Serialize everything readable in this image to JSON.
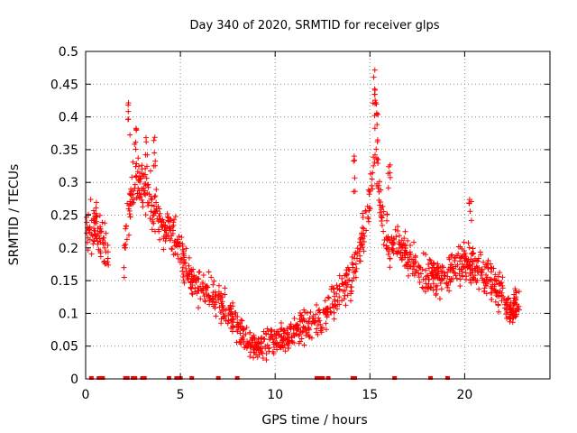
{
  "chart_data": {
    "type": "scatter",
    "title": "Day 340 of 2020, SRMTID for receiver glps",
    "xlabel": "GPS time / hours",
    "ylabel": "SRMTID / TECUs",
    "xlim": [
      0,
      24.5
    ],
    "ylim": [
      0,
      0.5
    ],
    "x_ticks": [
      0,
      5,
      10,
      15,
      20
    ],
    "y_ticks": [
      0,
      0.05,
      0.1,
      0.15,
      0.2,
      0.25,
      0.3,
      0.35,
      0.4,
      0.45,
      0.5
    ],
    "x_tick_labels": [
      "0",
      "5",
      "10",
      "15",
      "20"
    ],
    "y_tick_labels": [
      "0",
      "0.05",
      "0.1",
      "0.15",
      "0.2",
      "0.25",
      "0.3",
      "0.35",
      "0.4",
      "0.45",
      "0.5"
    ],
    "grid": true,
    "marker": "+",
    "color": "#ff0000",
    "series": [
      {
        "name": "SRMTID",
        "trend": [
          [
            0.0,
            0.22
          ],
          [
            0.5,
            0.24
          ],
          [
            1.0,
            0.2
          ],
          [
            2.0,
            0.18
          ],
          [
            2.5,
            0.3
          ],
          [
            3.0,
            0.3
          ],
          [
            3.5,
            0.26
          ],
          [
            4.0,
            0.24
          ],
          [
            4.5,
            0.23
          ],
          [
            5.0,
            0.19
          ],
          [
            5.5,
            0.16
          ],
          [
            6.0,
            0.14
          ],
          [
            6.5,
            0.13
          ],
          [
            7.0,
            0.12
          ],
          [
            7.5,
            0.1
          ],
          [
            8.0,
            0.08
          ],
          [
            8.5,
            0.06
          ],
          [
            9.0,
            0.05
          ],
          [
            9.5,
            0.05
          ],
          [
            10.0,
            0.06
          ],
          [
            10.5,
            0.065
          ],
          [
            11.0,
            0.07
          ],
          [
            11.5,
            0.08
          ],
          [
            12.0,
            0.085
          ],
          [
            12.5,
            0.09
          ],
          [
            13.0,
            0.11
          ],
          [
            13.5,
            0.14
          ],
          [
            14.0,
            0.15
          ],
          [
            14.5,
            0.2
          ],
          [
            15.0,
            0.27
          ],
          [
            15.3,
            0.35
          ],
          [
            15.6,
            0.25
          ],
          [
            16.0,
            0.2
          ],
          [
            16.5,
            0.2
          ],
          [
            17.0,
            0.19
          ],
          [
            17.5,
            0.17
          ],
          [
            18.0,
            0.16
          ],
          [
            18.5,
            0.16
          ],
          [
            19.0,
            0.16
          ],
          [
            19.5,
            0.17
          ],
          [
            20.0,
            0.18
          ],
          [
            20.5,
            0.17
          ],
          [
            21.0,
            0.16
          ],
          [
            21.5,
            0.15
          ],
          [
            22.0,
            0.13
          ],
          [
            22.5,
            0.1
          ],
          [
            22.9,
            0.12
          ]
        ],
        "spread": 0.045,
        "point_count": 1400,
        "gaps": [
          [
            1.2,
            2.0
          ]
        ],
        "spikes": [
          [
            2.3,
            0.43
          ],
          [
            2.6,
            0.4
          ],
          [
            3.2,
            0.37
          ],
          [
            3.6,
            0.38
          ],
          [
            15.2,
            0.48
          ],
          [
            15.3,
            0.45
          ],
          [
            15.4,
            0.42
          ],
          [
            16.0,
            0.33
          ],
          [
            20.3,
            0.28
          ],
          [
            14.2,
            0.34
          ]
        ],
        "zero_points_x": [
          0.3,
          0.7,
          0.9,
          2.1,
          2.2,
          2.5,
          2.6,
          3.0,
          3.1,
          4.4,
          4.8,
          5.0,
          5.6,
          7.0,
          8.0,
          12.2,
          12.3,
          12.5,
          12.8,
          14.1,
          14.2,
          16.3,
          18.2,
          19.1
        ]
      }
    ]
  }
}
